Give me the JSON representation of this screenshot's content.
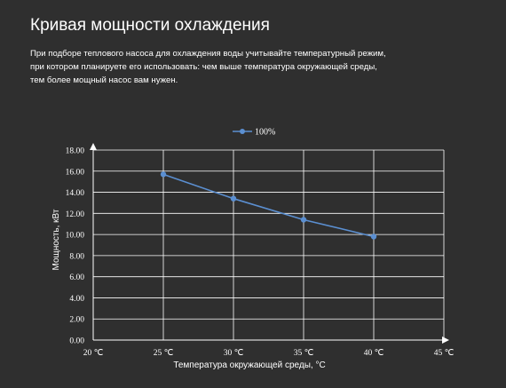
{
  "page": {
    "title": "Кривая мощности охлаждения",
    "description_lines": [
      "При подборе теплового насоса для охлаждения воды учитывайте температурный режим,",
      "при котором планируете его использовать: чем выше температура окружающей среды,",
      "тем более мощный насос вам нужен."
    ]
  },
  "colors": {
    "background": "#2f2f2f",
    "text": "#ffffff",
    "grid": "#ffffff",
    "series": "#5b8fd1"
  },
  "chart_data": {
    "type": "line",
    "x": [
      25,
      30,
      35,
      40
    ],
    "x_tick_labels": [
      "20 ℃",
      "25 ℃",
      "30 ℃",
      "35 ℃",
      "40 ℃",
      "45 ℃"
    ],
    "x_ticks": [
      20,
      25,
      30,
      35,
      40,
      45
    ],
    "y_tick_labels": [
      "0.00",
      "2.00",
      "4.00",
      "6.00",
      "8.00",
      "10.00",
      "12.00",
      "14.00",
      "16.00",
      "18.00"
    ],
    "y_ticks": [
      0,
      2,
      4,
      6,
      8,
      10,
      12,
      14,
      16,
      18
    ],
    "series": [
      {
        "name": "100%",
        "values": [
          15.7,
          13.4,
          11.4,
          9.8
        ]
      }
    ],
    "xlabel": "Температура окружающей среды, °С",
    "ylabel": "Мощность, кВт",
    "xlim": [
      20,
      45
    ],
    "ylim": [
      0,
      18
    ],
    "grid": true,
    "legend_position": "top-center"
  }
}
